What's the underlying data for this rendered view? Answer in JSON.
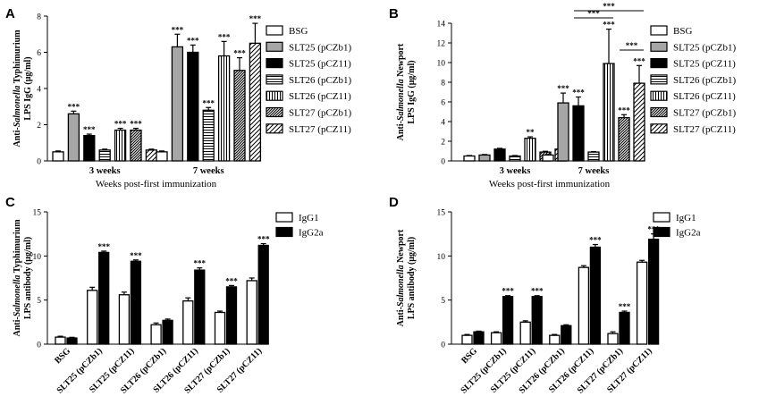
{
  "chart_data": [
    {
      "panel": "A",
      "type": "bar",
      "ylabel_pre": "Anti-",
      "ylabel_italic": "Salmonella",
      "ylabel_post": " Typhimurium",
      "ylabel_line2": "LPS IgG (μg/ml)",
      "xlabel": "Weeks post-first immunization",
      "ylim": [
        0,
        8
      ],
      "yticks": [
        0,
        2,
        4,
        6,
        8
      ],
      "categories": [
        "3 weeks",
        "7 weeks"
      ],
      "series": [
        {
          "name": "BSG",
          "values": [
            0.5,
            0.5
          ],
          "errors": [
            0.05,
            0.05
          ],
          "sig": [
            "",
            ""
          ]
        },
        {
          "name": "SLT25 (pCZb1)",
          "values": [
            2.6,
            6.3
          ],
          "errors": [
            0.15,
            0.7
          ],
          "sig": [
            "***",
            "***"
          ]
        },
        {
          "name": "SLT25 (pCZ11)",
          "values": [
            1.4,
            6.0
          ],
          "errors": [
            0.08,
            0.4
          ],
          "sig": [
            "***",
            "***"
          ]
        },
        {
          "name": "SLT26 (pCZb1)",
          "values": [
            0.6,
            2.8
          ],
          "errors": [
            0.05,
            0.15
          ],
          "sig": [
            "",
            "***"
          ]
        },
        {
          "name": "SLT26 (pCZ11)",
          "values": [
            1.7,
            5.8
          ],
          "errors": [
            0.1,
            0.8
          ],
          "sig": [
            "***",
            "***"
          ]
        },
        {
          "name": "SLT27 (pCZb1)",
          "values": [
            1.7,
            5.0
          ],
          "errors": [
            0.1,
            0.7
          ],
          "sig": [
            "***",
            "***"
          ]
        },
        {
          "name": "SLT27 (pCZ11)",
          "values": [
            0.6,
            6.5
          ],
          "errors": [
            0.05,
            1.1
          ],
          "sig": [
            "",
            "***"
          ]
        }
      ]
    },
    {
      "panel": "B",
      "type": "bar",
      "ylabel_pre": "Anti-",
      "ylabel_italic": "Salmonella",
      "ylabel_post": " Newport",
      "ylabel_line2": "LPS IgG (μg/ml)",
      "xlabel": "Weeks post-first immunization",
      "ylim": [
        0,
        14
      ],
      "yticks": [
        0,
        2,
        4,
        6,
        8,
        10,
        12,
        14
      ],
      "categories": [
        "3 weeks",
        "7 weeks"
      ],
      "series": [
        {
          "name": "BSG",
          "values": [
            0.5,
            0.6
          ],
          "errors": [
            0.05,
            0.05
          ],
          "sig": [
            "",
            ""
          ]
        },
        {
          "name": "SLT25 (pCZb1)",
          "values": [
            0.6,
            5.9
          ],
          "errors": [
            0.05,
            1.0
          ],
          "sig": [
            "",
            "***"
          ]
        },
        {
          "name": "SLT25 (pCZ11)",
          "values": [
            1.2,
            5.6
          ],
          "errors": [
            0.08,
            0.9
          ],
          "sig": [
            "",
            "***"
          ]
        },
        {
          "name": "SLT26 (pCZb1)",
          "values": [
            0.5,
            0.9
          ],
          "errors": [
            0.05,
            0.05
          ],
          "sig": [
            "",
            ""
          ]
        },
        {
          "name": "SLT26 (pCZ11)",
          "values": [
            2.3,
            9.9
          ],
          "errors": [
            0.15,
            3.5
          ],
          "sig": [
            "**",
            "***"
          ]
        },
        {
          "name": "SLT27 (pCZb1)",
          "values": [
            0.9,
            4.4
          ],
          "errors": [
            0.08,
            0.3
          ],
          "sig": [
            "",
            "***"
          ]
        },
        {
          "name": "SLT27 (pCZ11)",
          "values": [
            1.2,
            7.9
          ],
          "errors": [
            0.1,
            1.8
          ],
          "sig": [
            "",
            "***"
          ]
        }
      ],
      "brackets": [
        {
          "from_series": 2,
          "to_series": 4,
          "label": "***"
        },
        {
          "from_series": 2,
          "to_series": 6,
          "label": "***"
        },
        {
          "from_series": 5,
          "to_series": 6,
          "label": "***"
        }
      ]
    },
    {
      "panel": "C",
      "type": "bar",
      "ylabel_pre": "Anti-",
      "ylabel_italic": "Salmonella",
      "ylabel_post": " Typhimurium",
      "ylabel_line2": "LPS antibody (μg/ml)",
      "ylim": [
        0,
        15
      ],
      "yticks": [
        0,
        5,
        10,
        15
      ],
      "categories": [
        "BSG",
        "SLT25 (pCZb1)",
        "SLT25 (pCZ11)",
        "SLT26 (pCZb1)",
        "SLT26 (pCZ11)",
        "SLT27 (pCZb1)",
        "SLT27 (pCZ11)"
      ],
      "series": [
        {
          "name": "IgG1",
          "values": [
            0.8,
            6.1,
            5.6,
            2.2,
            4.9,
            3.6,
            7.2
          ],
          "errors": [
            0.1,
            0.35,
            0.3,
            0.2,
            0.35,
            0.15,
            0.3
          ],
          "sig": [
            "",
            "",
            "",
            "",
            "",
            "",
            ""
          ]
        },
        {
          "name": "IgG2a",
          "values": [
            0.7,
            10.4,
            9.4,
            2.7,
            8.4,
            6.5,
            11.2
          ],
          "errors": [
            0.08,
            0.15,
            0.15,
            0.15,
            0.25,
            0.15,
            0.2
          ],
          "sig": [
            "",
            "***",
            "***",
            "",
            "***",
            "***",
            "***"
          ]
        }
      ]
    },
    {
      "panel": "D",
      "type": "bar",
      "ylabel_pre": "Anti-",
      "ylabel_italic": "Salmonella",
      "ylabel_post": " Newport",
      "ylabel_line2": "LPS antibody (μg/ml)",
      "ylim": [
        0,
        15
      ],
      "yticks": [
        0,
        5,
        10,
        15
      ],
      "categories": [
        "BSG",
        "SLT25 (pCZb1)",
        "SLT25 (pCZ11)",
        "SLT26 (pCZb1)",
        "SLT26 (pCZ11)",
        "SLT27 (pCZb1)",
        "SLT27 (pCZ11)"
      ],
      "series": [
        {
          "name": "IgG1",
          "values": [
            1.0,
            1.3,
            2.5,
            1.0,
            8.7,
            1.2,
            9.3
          ],
          "errors": [
            0.1,
            0.1,
            0.15,
            0.1,
            0.2,
            0.2,
            0.2
          ],
          "sig": [
            "",
            "",
            "",
            "",
            "",
            "",
            ""
          ]
        },
        {
          "name": "IgG2a",
          "values": [
            1.4,
            5.4,
            5.4,
            2.1,
            11.0,
            3.6,
            11.9
          ],
          "errors": [
            0.08,
            0.1,
            0.1,
            0.1,
            0.3,
            0.15,
            0.6
          ],
          "sig": [
            "",
            "***",
            "***",
            "",
            "***",
            "***",
            "***"
          ]
        }
      ]
    }
  ]
}
